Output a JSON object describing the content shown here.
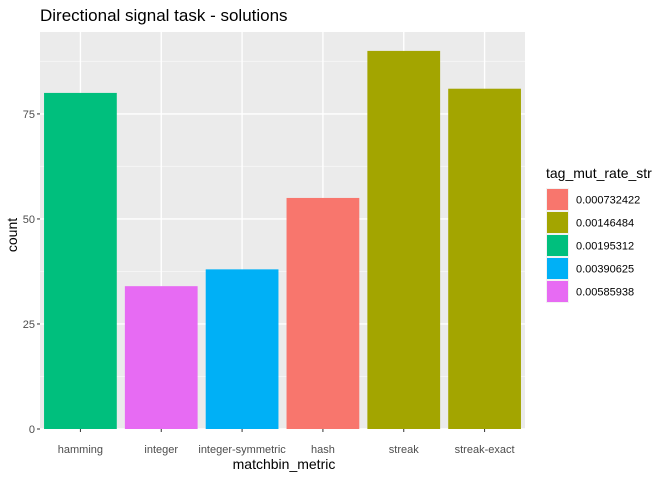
{
  "chart_data": {
    "type": "bar",
    "title": "Directional signal task - solutions",
    "xlabel": "matchbin_metric",
    "ylabel": "count",
    "categories": [
      "hamming",
      "integer",
      "integer-symmetric",
      "hash",
      "streak",
      "streak-exact"
    ],
    "values": [
      80,
      34,
      38,
      55,
      90,
      81
    ],
    "fill_groups": [
      "0.00195312",
      "0.00585938",
      "0.00390625",
      "0.000732422",
      "0.00146484",
      "0.00146484"
    ],
    "ylim": [
      0,
      94.5
    ],
    "yticks": [
      0,
      25,
      50,
      75
    ],
    "grid": true,
    "legend": {
      "title": "tag_mut_rate_str",
      "position": "right",
      "entries": [
        {
          "label": "0.000732422",
          "color": "#F8766D"
        },
        {
          "label": "0.00146484",
          "color": "#A3A500"
        },
        {
          "label": "0.00195312",
          "color": "#00BF7D"
        },
        {
          "label": "0.00390625",
          "color": "#00B0F6"
        },
        {
          "label": "0.00585938",
          "color": "#E76BF3"
        }
      ]
    },
    "colors": {
      "panel_background": "#EBEBEB",
      "grid_major": "#FFFFFF",
      "grid_minor": "#F5F5F5"
    }
  }
}
